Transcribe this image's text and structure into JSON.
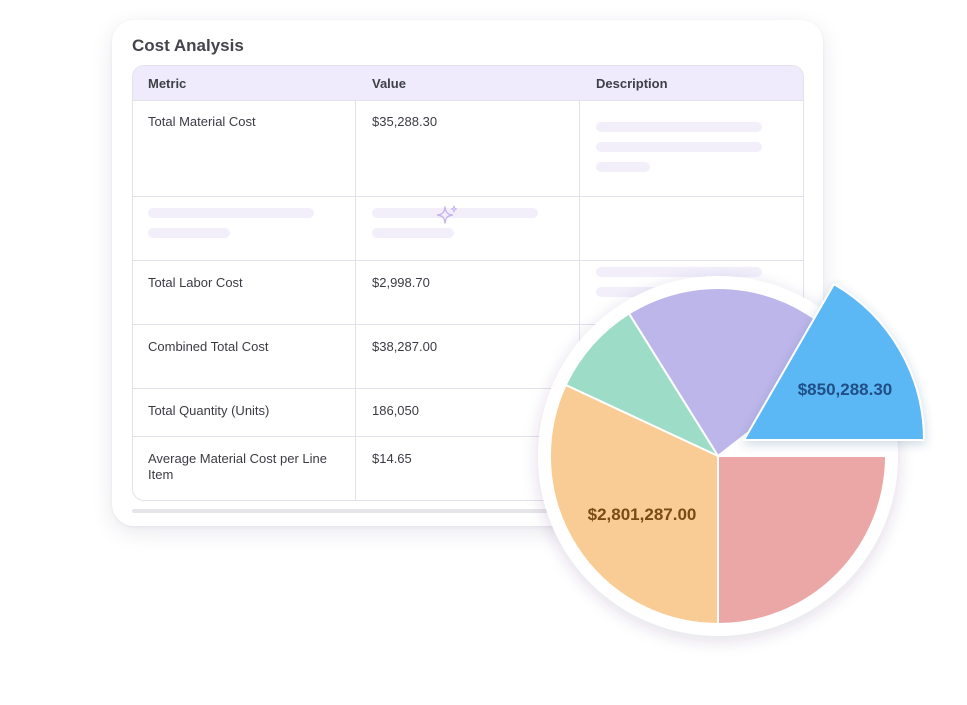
{
  "card": {
    "title": "Cost Analysis"
  },
  "table": {
    "headers": {
      "metric": "Metric",
      "value": "Value",
      "description": "Description"
    },
    "rows": [
      {
        "metric": "Total Material Cost",
        "value": "$35,288.30"
      },
      {
        "metric": "",
        "value": ""
      },
      {
        "metric": "Total Labor Cost",
        "value": "$2,998.70"
      },
      {
        "metric": "Combined Total Cost",
        "value": "$38,287.00"
      },
      {
        "metric": "Total Quantity (Units)",
        "value": "186,050"
      },
      {
        "metric": "Average Material Cost per Line Item",
        "value": "$14.65"
      }
    ]
  },
  "pie": {
    "colors": {
      "blue": "#5bb8f5",
      "red": "#eaa7a6",
      "orange": "#f8cc94",
      "green": "#9ddcc7",
      "purple": "#bdb6ea"
    },
    "labels": {
      "blue_value": "$850,288.30",
      "orange_value": "$2,801,287.00"
    }
  }
}
